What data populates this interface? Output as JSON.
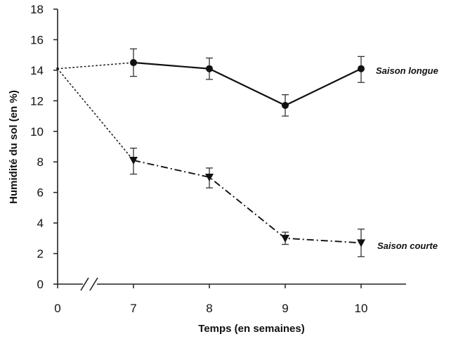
{
  "chart_data": {
    "type": "line",
    "title": "",
    "xlabel": "Temps (en semaines)",
    "ylabel": "Humidité du sol (en %)",
    "x_ticks": [
      "0",
      "7",
      "8",
      "9",
      "10"
    ],
    "y_ticks": [
      "0",
      "2",
      "4",
      "6",
      "8",
      "10",
      "12",
      "14",
      "16",
      "18"
    ],
    "ylim": [
      0,
      18
    ],
    "axis_break": "between 0 and 7",
    "grid": false,
    "start_point": {
      "x": "0",
      "y": 14.1
    },
    "series": [
      {
        "name": "Saison longue",
        "marker": "circle",
        "line_style": "solid",
        "x": [
          "7",
          "8",
          "9",
          "10"
        ],
        "values": [
          14.5,
          14.1,
          11.7,
          14.1
        ],
        "error_low": [
          13.6,
          13.4,
          11.0,
          13.2
        ],
        "error_high": [
          15.4,
          14.8,
          12.4,
          14.9
        ]
      },
      {
        "name": "Saison courte",
        "marker": "triangle-down",
        "line_style": "dash-dot",
        "x": [
          "7",
          "8",
          "9",
          "10"
        ],
        "values": [
          8.1,
          7.0,
          3.0,
          2.7
        ],
        "error_low": [
          7.2,
          6.3,
          2.6,
          1.8
        ],
        "error_high": [
          8.9,
          7.6,
          3.4,
          3.6
        ]
      }
    ]
  }
}
